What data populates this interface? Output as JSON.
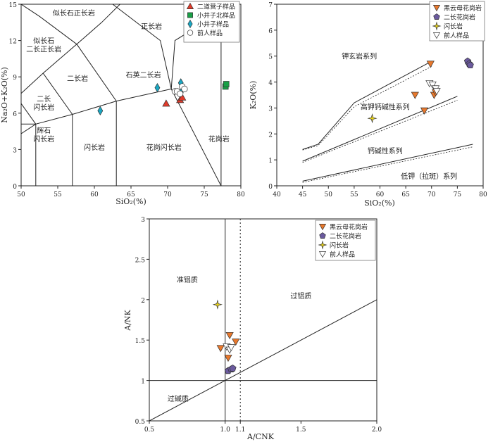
{
  "chart_data": [
    {
      "type": "scatter",
      "xlabel": "SiO₂(%)",
      "ylabel": "Na₂O+K₂O(%)",
      "xlim": [
        50,
        80
      ],
      "ylim": [
        0,
        15
      ],
      "xticks": [
        50,
        55,
        60,
        65,
        70,
        75,
        80
      ],
      "yticks": [
        0,
        3,
        6,
        9,
        12,
        15
      ],
      "legend_position": "top-right",
      "field_labels": [
        {
          "text": "似长石正长岩",
          "x": 57.2,
          "y": 14.3
        },
        {
          "text": "正长岩",
          "x": 67.8,
          "y": 13.2
        },
        {
          "text": "似长石",
          "x": 53.1,
          "y": 12.0
        },
        {
          "text": "二长正长岩",
          "x": 53.1,
          "y": 11.3
        },
        {
          "text": "二长岩",
          "x": 57.7,
          "y": 8.9
        },
        {
          "text": "石英二长岩",
          "x": 66.7,
          "y": 9.2
        },
        {
          "text": "二长",
          "x": 53.1,
          "y": 7.2
        },
        {
          "text": "闪长岩",
          "x": 53.1,
          "y": 6.5
        },
        {
          "text": "辉石",
          "x": 53.1,
          "y": 4.6
        },
        {
          "text": "闪长岩",
          "x": 53.1,
          "y": 3.9
        },
        {
          "text": "闪长岩",
          "x": 60.0,
          "y": 3.2
        },
        {
          "text": "花岗闪长岩",
          "x": 69.5,
          "y": 3.2
        },
        {
          "text": "花岗岩",
          "x": 77.0,
          "y": 3.9
        }
      ],
      "series": [
        {
          "name": "二道营子样品",
          "marker": "triangle-up",
          "color": "#e03a2a",
          "points": [
            [
              69.8,
              6.8
            ],
            [
              71.7,
              7.1
            ],
            [
              72.0,
              7.3
            ]
          ]
        },
        {
          "name": "小井子北样品",
          "marker": "square",
          "color": "#19a046",
          "points": [
            [
              77.9,
              8.2
            ],
            [
              78.0,
              8.4
            ]
          ]
        },
        {
          "name": "小井子样品",
          "marker": "diamond",
          "color": "#1aa8c4",
          "points": [
            [
              60.8,
              6.2
            ],
            [
              68.6,
              8.1
            ],
            [
              71.8,
              8.5
            ],
            [
              71.8,
              7.7
            ]
          ]
        },
        {
          "name": "前人样品",
          "marker": "circle-open",
          "color": "#444444",
          "points": [
            [
              71.0,
              7.8
            ],
            [
              71.3,
              7.8
            ],
            [
              72.0,
              8.2
            ],
            [
              72.3,
              8.0
            ],
            [
              71.7,
              7.6
            ]
          ]
        }
      ]
    },
    {
      "type": "scatter",
      "xlabel": "SiO₂(%)",
      "ylabel": "K₂O(%)",
      "xlim": [
        40,
        80
      ],
      "ylim": [
        0,
        7
      ],
      "xticks": [
        40,
        45,
        50,
        55,
        60,
        65,
        70,
        75,
        80
      ],
      "yticks": [
        0,
        1,
        2,
        3,
        4,
        5,
        6,
        7
      ],
      "legend_position": "top-right",
      "field_labels": [
        {
          "text": "钾玄岩系列",
          "x": 56.0,
          "y": 5.0
        },
        {
          "text": "高钾钙碱性系列",
          "x": 61.0,
          "y": 3.05
        },
        {
          "text": "钙碱性系列",
          "x": 61.0,
          "y": 1.35
        },
        {
          "text": "低钾（拉斑）系列",
          "x": 69.5,
          "y": 0.38
        }
      ],
      "series": [
        {
          "name": "黑云母花岗岩",
          "marker": "triangle-down",
          "color": "#e8782c",
          "points": [
            [
              69.8,
              4.7
            ],
            [
              66.8,
              3.5
            ],
            [
              68.6,
              2.9
            ],
            [
              70.5,
              3.5
            ],
            [
              70.8,
              3.6
            ]
          ]
        },
        {
          "name": "二长花岗岩",
          "marker": "pentagon",
          "color": "#6b5a9e",
          "points": [
            [
              77.0,
              4.8
            ],
            [
              77.3,
              4.7
            ],
            [
              77.5,
              4.65
            ]
          ]
        },
        {
          "name": "闪长岩",
          "marker": "star4",
          "color": "#e8d21a",
          "points": [
            [
              58.5,
              2.6
            ]
          ]
        },
        {
          "name": "前人样品",
          "marker": "triangle-down-open",
          "color": "#555555",
          "points": [
            [
              69.6,
              3.95
            ],
            [
              70.2,
              3.9
            ],
            [
              70.8,
              3.75
            ],
            [
              71.0,
              3.65
            ]
          ]
        }
      ]
    },
    {
      "type": "scatter",
      "xlabel": "A/CNK",
      "ylabel": "A/NK",
      "xlim": [
        0.5,
        2.0
      ],
      "ylim": [
        0.5,
        3.0
      ],
      "xticks": [
        {
          "value": 0.5,
          "label": "0.5"
        },
        {
          "value": 1.0,
          "label": "1.0"
        },
        {
          "value": 1.1,
          "label": "1.1"
        },
        {
          "value": 1.5,
          "label": "1.5"
        },
        {
          "value": 2.0,
          "label": "2.0"
        }
      ],
      "yticks": [
        0.5,
        1.0,
        1.5,
        2.0,
        2.5,
        3.0
      ],
      "legend_position": "top-right",
      "field_labels": [
        {
          "text": "准铝质",
          "x": 0.75,
          "y": 2.25
        },
        {
          "text": "过铝质",
          "x": 1.5,
          "y": 2.05
        },
        {
          "text": "过碱质",
          "x": 0.69,
          "y": 0.78
        }
      ],
      "series": [
        {
          "name": "黑云母花岗岩",
          "marker": "triangle-down",
          "color": "#e8782c",
          "points": [
            [
              1.03,
              1.56
            ],
            [
              1.07,
              1.48
            ],
            [
              0.97,
              1.4
            ],
            [
              1.02,
              1.28
            ]
          ]
        },
        {
          "name": "二长花岗岩",
          "marker": "pentagon",
          "color": "#6b5a9e",
          "points": [
            [
              1.02,
              1.12
            ],
            [
              1.04,
              1.14
            ],
            [
              1.05,
              1.15
            ]
          ]
        },
        {
          "name": "闪长岩",
          "marker": "star4",
          "color": "#e8d21a",
          "points": [
            [
              0.95,
              1.94
            ]
          ]
        },
        {
          "name": "前人样品",
          "marker": "triangle-down-open",
          "color": "#555555",
          "points": [
            [
              1.01,
              1.42
            ],
            [
              1.03,
              1.38
            ],
            [
              1.04,
              1.41
            ]
          ]
        }
      ]
    }
  ]
}
